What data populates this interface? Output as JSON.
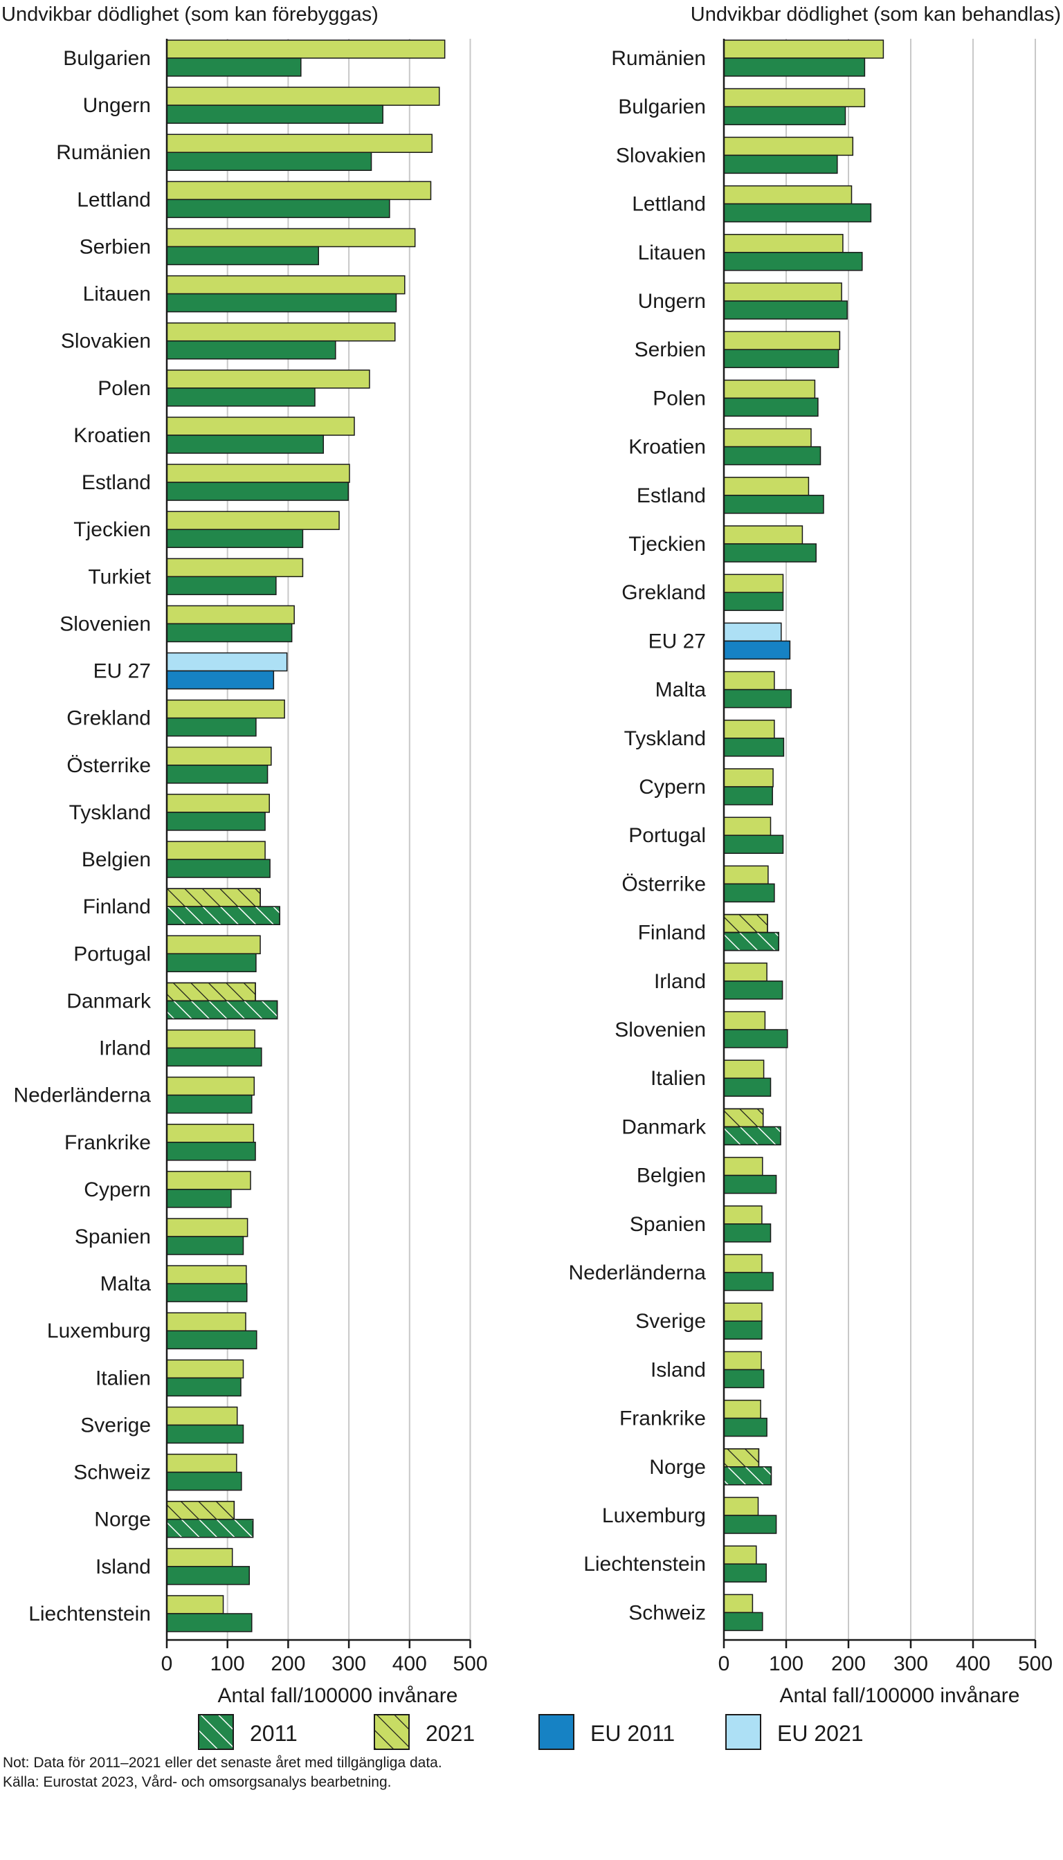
{
  "colors": {
    "y2011": "#22874b",
    "y2021": "#c8dc64",
    "eu2011": "#1682c4",
    "eu2021": "#ade0f5",
    "grid": "#c8c8c8",
    "axis": "#1a1a1a"
  },
  "legend": [
    {
      "key": "y2011",
      "label": "2011",
      "hatched": true
    },
    {
      "key": "y2021",
      "label": "2021",
      "hatched": true
    },
    {
      "key": "eu2011",
      "label": "EU 2011",
      "hatched": false
    },
    {
      "key": "eu2021",
      "label": "EU 2021",
      "hatched": false
    }
  ],
  "footnotes": {
    "note": "Not: Data för 2011–2021 eller det senaste året med tillgängliga data.",
    "source": "Källa: Eurostat 2023, Vård- och omsorgsanalys bearbetning."
  },
  "chart_data": [
    {
      "type": "bar",
      "orientation": "horizontal",
      "title": "Undvikbar dödlighet (som kan förebyggas)",
      "xlabel": "Antal fall/100000 invånare",
      "xlim": [
        0,
        500
      ],
      "xticks": [
        0,
        100,
        200,
        300,
        400,
        500
      ],
      "grid": true,
      "series_names": [
        "2021",
        "2011"
      ],
      "hatched_categories": [
        "Finland",
        "Danmark",
        "Norge"
      ],
      "eu_category": "EU 27",
      "categories": [
        "Bulgarien",
        "Ungern",
        "Rumänien",
        "Lettland",
        "Serbien",
        "Litauen",
        "Slovakien",
        "Polen",
        "Kroatien",
        "Estland",
        "Tjeckien",
        "Turkiet",
        "Slovenien",
        "EU 27",
        "Grekland",
        "Österrike",
        "Tyskland",
        "Belgien",
        "Finland",
        "Portugal",
        "Danmark",
        "Irland",
        "Nederländerna",
        "Frankrike",
        "Cypern",
        "Spanien",
        "Malta",
        "Luxemburg",
        "Italien",
        "Sverige",
        "Schweiz",
        "Norge",
        "Island",
        "Liechtenstein"
      ],
      "values_2021": [
        458,
        449,
        437,
        435,
        409,
        392,
        376,
        334,
        309,
        301,
        284,
        224,
        210,
        198,
        194,
        172,
        169,
        162,
        154,
        154,
        146,
        145,
        144,
        143,
        138,
        133,
        131,
        130,
        126,
        116,
        115,
        111,
        108,
        93
      ],
      "values_2011": [
        221,
        356,
        337,
        367,
        250,
        378,
        278,
        244,
        258,
        299,
        224,
        180,
        206,
        176,
        147,
        166,
        162,
        170,
        186,
        147,
        182,
        156,
        140,
        146,
        106,
        126,
        132,
        148,
        122,
        126,
        123,
        142,
        136,
        140
      ]
    },
    {
      "type": "bar",
      "orientation": "horizontal",
      "title": "Undvikbar dödlighet (som kan behandlas)",
      "xlabel": "Antal fall/100000 invånare",
      "xlim": [
        0,
        500
      ],
      "xticks": [
        0,
        100,
        200,
        300,
        400,
        500
      ],
      "grid": true,
      "series_names": [
        "2021",
        "2011"
      ],
      "hatched_categories": [
        "Finland",
        "Danmark",
        "Norge"
      ],
      "eu_category": "EU 27",
      "categories": [
        "Rumänien",
        "Bulgarien",
        "Slovakien",
        "Lettland",
        "Litauen",
        "Ungern",
        "Serbien",
        "Polen",
        "Kroatien",
        "Estland",
        "Tjeckien",
        "Grekland",
        "EU 27",
        "Malta",
        "Tyskland",
        "Cypern",
        "Portugal",
        "Österrike",
        "Finland",
        "Irland",
        "Slovenien",
        "Italien",
        "Danmark",
        "Belgien",
        "Spanien",
        "Nederländerna",
        "Sverige",
        "Island",
        "Frankrike",
        "Norge",
        "Luxemburg",
        "Liechtenstein",
        "Schweiz"
      ],
      "values_2021": [
        256,
        226,
        207,
        205,
        191,
        189,
        186,
        146,
        140,
        136,
        126,
        95,
        92,
        81,
        81,
        79,
        75,
        71,
        70,
        69,
        66,
        64,
        63,
        62,
        61,
        61,
        61,
        60,
        59,
        56,
        55,
        52,
        46
      ],
      "values_2011": [
        226,
        195,
        182,
        236,
        222,
        198,
        184,
        151,
        155,
        160,
        148,
        95,
        106,
        108,
        96,
        78,
        95,
        81,
        88,
        94,
        102,
        75,
        91,
        84,
        75,
        79,
        61,
        64,
        69,
        76,
        84,
        68,
        62
      ]
    }
  ]
}
